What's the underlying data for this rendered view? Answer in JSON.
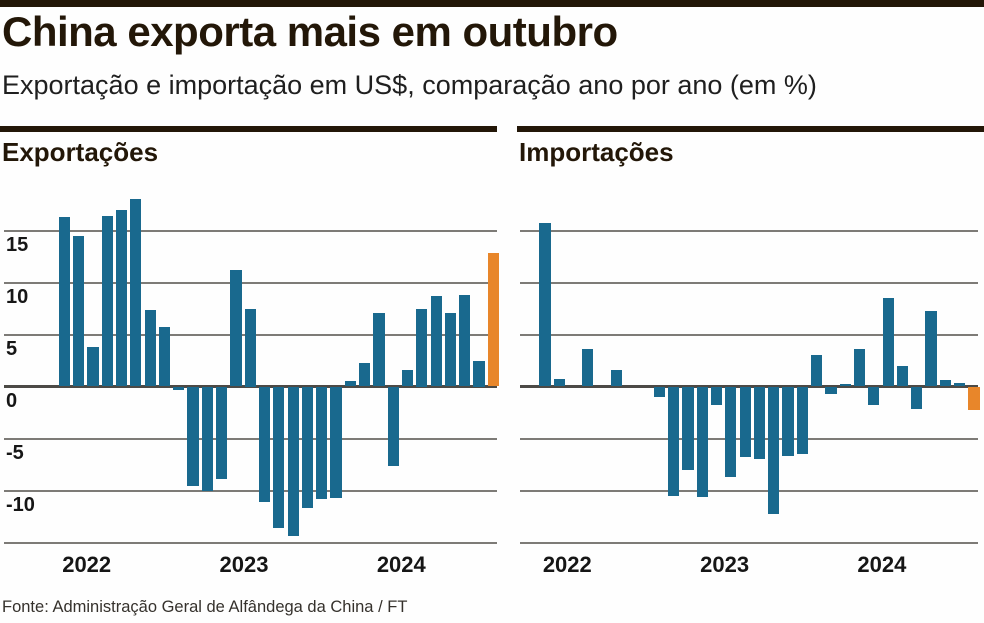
{
  "page": {
    "title": "China exporta mais em outubro",
    "subtitle": "Exportação e importação em US$, comparação ano por ano (em %)",
    "source": "Fonte: Administração Geral de Alfândega da China / FT"
  },
  "colors": {
    "ink": "#231708",
    "bar": "#19698e",
    "highlight": "#e8862a",
    "grid": "#7d7b77",
    "zero_line": "#4c4a46"
  },
  "chart_data": [
    {
      "type": "bar",
      "title": "Exportações",
      "unit": "% year-over-year",
      "x_year_labels": [
        "2022",
        "2023",
        "2024"
      ],
      "year_start_indices": [
        0,
        11,
        22
      ],
      "yticks": [
        15,
        10,
        5,
        0,
        -5,
        -10
      ],
      "ylim": [
        -15,
        20
      ],
      "grid": true,
      "highlight_last_bar": true,
      "values": [
        16.3,
        14.5,
        3.8,
        16.4,
        17.0,
        18.0,
        7.4,
        5.7,
        -0.3,
        -9.6,
        -10.0,
        -8.9,
        11.2,
        7.5,
        -11.1,
        -13.6,
        -14.4,
        -11.7,
        -10.8,
        -10.7,
        0.5,
        2.3,
        7.1,
        -7.6,
        1.6,
        7.5,
        8.7,
        7.1,
        8.8,
        2.5,
        12.8
      ]
    },
    {
      "type": "bar",
      "title": "Importações",
      "unit": "% year-over-year",
      "x_year_labels": [
        "2022",
        "2023",
        "2024"
      ],
      "year_start_indices": [
        0,
        11,
        22
      ],
      "yticks": [],
      "ylim": [
        -15,
        20
      ],
      "grid": true,
      "highlight_last_bar": true,
      "values": [
        15.7,
        0.7,
        0,
        3.6,
        0,
        1.6,
        0,
        0,
        -1.0,
        -10.5,
        -8.0,
        -10.6,
        -1.8,
        -8.7,
        -6.8,
        -7.0,
        -12.3,
        -6.7,
        -6.5,
        3.0,
        -0.7,
        0.2,
        3.6,
        -1.8,
        8.5,
        2.0,
        -2.2,
        7.3,
        0.6,
        0.3,
        -2.3
      ]
    }
  ]
}
